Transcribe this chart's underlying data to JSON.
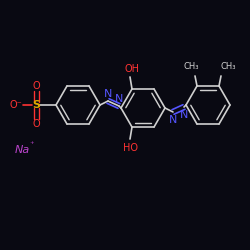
{
  "background_color": "#090912",
  "bond_color": "#d0d0d0",
  "bond_width": 1.2,
  "N_color": "#5555ff",
  "O_color": "#ff3333",
  "S_color": "#ddaa00",
  "Na_color": "#bb44cc",
  "font_size": 8,
  "figsize": [
    2.5,
    2.5
  ],
  "dpi": 100,
  "xlim": [
    0,
    250
  ],
  "ylim": [
    0,
    250
  ]
}
